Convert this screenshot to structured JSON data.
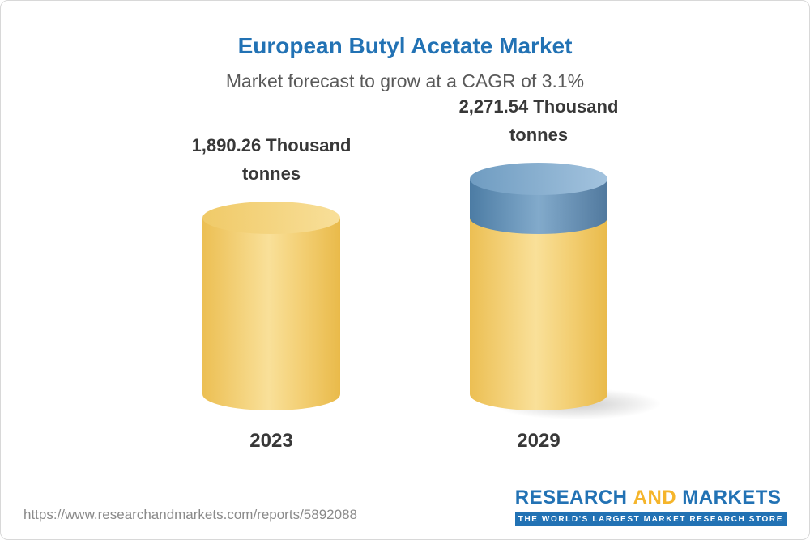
{
  "chart_data": {
    "type": "bar",
    "title": "European Butyl Acetate Market",
    "subtitle": "Market forecast to grow at a CAGR of 3.1%",
    "categories": [
      "2023",
      "2029"
    ],
    "values": [
      1890.26,
      2271.54
    ],
    "unit": "Thousand tonnes",
    "value_labels": [
      "1,890.26 Thousand tonnes",
      "2,271.54 Thousand tonnes"
    ],
    "ylim": [
      0,
      2271.54
    ],
    "legend_position": "none",
    "grid": "off",
    "colors": {
      "base_segment": "#ecbf53",
      "growth_segment": "#4c7ca4",
      "title": "#2272B4"
    }
  },
  "footer": {
    "url": "https://www.researchandmarkets.com/reports/5892088",
    "logo": {
      "word1": "RESEARCH",
      "word2": "AND",
      "word3": "MARKETS",
      "tagline": "THE WORLD'S LARGEST MARKET RESEARCH STORE"
    }
  }
}
